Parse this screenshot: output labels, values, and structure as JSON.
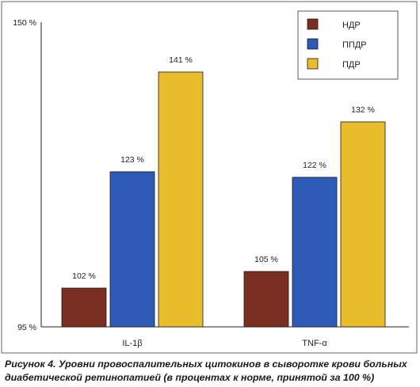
{
  "chart_data": {
    "type": "bar",
    "categories": [
      "IL-1β",
      "TNF-α"
    ],
    "series": [
      {
        "name": "НДР",
        "values": [
          102,
          105
        ],
        "labels": [
          "102 %",
          "105 %"
        ],
        "color": "#7a2e22"
      },
      {
        "name": "ППДР",
        "values": [
          123,
          122
        ],
        "labels": [
          "123 %",
          "122 %"
        ],
        "color": "#2e5bb8"
      },
      {
        "name": "ПДР",
        "values": [
          141,
          132
        ],
        "labels": [
          "141 %",
          "132 %"
        ],
        "color": "#e8bc2c"
      }
    ],
    "ylim": [
      95,
      150
    ],
    "yticks": [
      {
        "value": 95,
        "label": "95 %"
      },
      {
        "value": 150,
        "label": "150 %"
      }
    ],
    "title": "",
    "xlabel": "",
    "ylabel": "",
    "legend_position": "top-right",
    "grid": false
  },
  "caption": "Рисунок 4. Уровни провоспалительных цитокинов в сыворотке крови больных диабетической ретинопатией (в процентах к норме, принятой за 100 %)"
}
